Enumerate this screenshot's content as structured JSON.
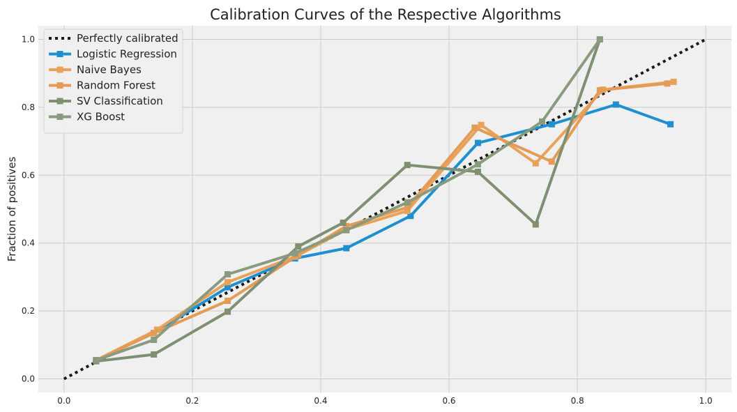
{
  "chart_data": {
    "type": "line",
    "title": "Calibration Curves of the Respective Algorithms",
    "xlabel": "",
    "ylabel": "Fraction of positives",
    "xlim": [
      -0.04,
      1.04
    ],
    "ylim": [
      -0.04,
      1.04
    ],
    "xticks": [
      0.0,
      0.2,
      0.4,
      0.6,
      0.8,
      1.0
    ],
    "yticks": [
      0.0,
      0.2,
      0.4,
      0.6,
      0.8,
      1.0
    ],
    "xtick_labels": [
      "0.0",
      "0.2",
      "0.4",
      "0.6",
      "0.8",
      "1.0"
    ],
    "ytick_labels": [
      "0.0",
      "0.2",
      "0.4",
      "0.6",
      "0.8",
      "1.0"
    ],
    "grid": true,
    "legend_position": "top-left",
    "colors": {
      "background": "#f0f0f0",
      "grid": "#cbcbcb",
      "text": "#222222"
    },
    "series": [
      {
        "name": "Perfectly calibrated",
        "color": "#1a1a1a",
        "dashed": true,
        "markers": false,
        "x": [
          0.0,
          1.0
        ],
        "y": [
          0.0,
          1.0
        ]
      },
      {
        "name": "Logistic Regression",
        "color": "#1f8fd0",
        "dashed": false,
        "markers": true,
        "x": [
          0.05,
          0.14,
          0.255,
          0.36,
          0.44,
          0.54,
          0.645,
          0.76,
          0.86,
          0.945
        ],
        "y": [
          0.055,
          0.135,
          0.27,
          0.355,
          0.385,
          0.48,
          0.695,
          0.75,
          0.808,
          0.75
        ]
      },
      {
        "name": "Naive Bayes",
        "color": "#e8a25a",
        "dashed": false,
        "markers": true,
        "x": [
          0.05,
          0.145,
          0.255,
          0.36,
          0.44,
          0.535,
          0.65,
          0.735,
          0.84,
          0.95
        ],
        "y": [
          0.055,
          0.145,
          0.285,
          0.36,
          0.44,
          0.495,
          0.748,
          0.635,
          0.852,
          0.875
        ]
      },
      {
        "name": "Random Forest",
        "color": "#e39b55",
        "dashed": false,
        "markers": true,
        "x": [
          0.05,
          0.14,
          0.255,
          0.365,
          0.44,
          0.535,
          0.64,
          0.76,
          0.835,
          0.94
        ],
        "y": [
          0.055,
          0.135,
          0.23,
          0.365,
          0.45,
          0.505,
          0.74,
          0.64,
          0.85,
          0.87
        ]
      },
      {
        "name": "SV Classification",
        "color": "#7f8f72",
        "dashed": false,
        "markers": true,
        "x": [
          0.05,
          0.14,
          0.255,
          0.365,
          0.435,
          0.535,
          0.645,
          0.735,
          0.835
        ],
        "y": [
          0.052,
          0.072,
          0.198,
          0.39,
          0.46,
          0.63,
          0.61,
          0.455,
          1.0
        ]
      },
      {
        "name": "XG Boost",
        "color": "#899b7f",
        "dashed": false,
        "markers": true,
        "x": [
          0.05,
          0.14,
          0.255,
          0.36,
          0.44,
          0.535,
          0.645,
          0.745,
          0.835
        ],
        "y": [
          0.055,
          0.115,
          0.308,
          0.37,
          0.438,
          0.52,
          0.632,
          0.758,
          1.0
        ]
      }
    ]
  }
}
